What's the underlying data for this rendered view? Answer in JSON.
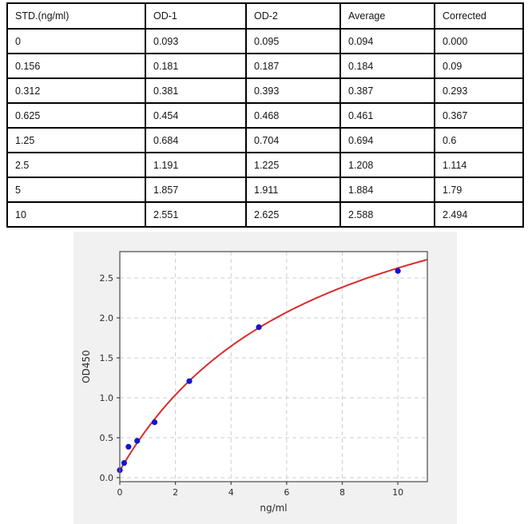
{
  "table": {
    "headers": [
      "STD.(ng/ml)",
      "OD-1",
      "OD-2",
      "Average",
      "Corrected"
    ],
    "rows": [
      [
        "0",
        "0.093",
        "0.095",
        "0.094",
        "0.000"
      ],
      [
        "0.156",
        "0.181",
        "0.187",
        "0.184",
        "0.09"
      ],
      [
        "0.312",
        "0.381",
        "0.393",
        "0.387",
        "0.293"
      ],
      [
        "0.625",
        "0.454",
        "0.468",
        "0.461",
        "0.367"
      ],
      [
        "1.25",
        "0.684",
        "0.704",
        "0.694",
        "0.6"
      ],
      [
        "2.5",
        "1.191",
        "1.225",
        "1.208",
        "1.114"
      ],
      [
        "5",
        "1.857",
        "1.911",
        "1.884",
        "1.79"
      ],
      [
        "10",
        "2.551",
        "2.625",
        "2.588",
        "2.494"
      ]
    ]
  },
  "chart_data": {
    "type": "scatter",
    "title": "",
    "xlabel": "ng/ml",
    "ylabel": "OD450",
    "x": [
      0,
      0.156,
      0.312,
      0.625,
      1.25,
      2.5,
      5,
      10
    ],
    "y": [
      0.094,
      0.184,
      0.387,
      0.461,
      0.694,
      1.208,
      1.884,
      2.588
    ],
    "fit_curve": {
      "model": "4PL",
      "equation": "y = d + (a - d) / (1 + (x/c)^b)",
      "params": {
        "a": 0.088,
        "b": 1.0,
        "c": 7.2,
        "d": 4.45
      }
    },
    "xlim": [
      0,
      11.06
    ],
    "ylim": [
      -0.05,
      2.83
    ],
    "x_tick_values": [
      0,
      2,
      4,
      6,
      8,
      10
    ],
    "x_tick_labels": [
      "0",
      "2",
      "4",
      "6",
      "8",
      "10"
    ],
    "y_tick_values": [
      0.0,
      0.5,
      1.0,
      1.5,
      2.0,
      2.5
    ],
    "y_tick_labels": [
      "0.0",
      "0.5",
      "1.0",
      "1.5",
      "2.0",
      "2.5"
    ],
    "grid": true,
    "legend": "none",
    "colors": {
      "point": "#1414cf",
      "curve": "#d92b2b",
      "figure_bg": "#f1f1f1",
      "plot_bg": "#ffffff",
      "grid": "#cdcdcd",
      "spine": "#606060",
      "tick": "#444444",
      "text": "#2b2b2b"
    }
  }
}
